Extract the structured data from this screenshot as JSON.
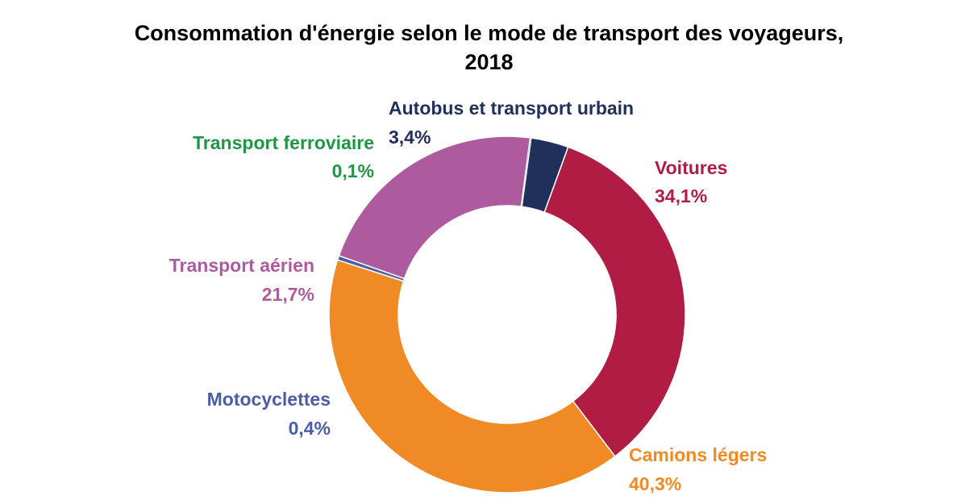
{
  "chart_data": {
    "type": "pie",
    "donut": true,
    "title": "Consommation d'énergie selon le mode de transport des voyageurs, 2018",
    "title_lines": [
      "Consommation d'énergie selon le mode de transport des voyageurs,",
      "2018"
    ],
    "slices": [
      {
        "label": "Voitures",
        "value": 34.1,
        "value_text": "34,1%",
        "color": "#b01c44"
      },
      {
        "label": "Camions légers",
        "value": 40.3,
        "value_text": "40,3%",
        "color": "#f08a24"
      },
      {
        "label": "Motocyclettes",
        "value": 0.4,
        "value_text": "0,4%",
        "color": "#4a5ea8"
      },
      {
        "label": "Transport aérien",
        "value": 21.7,
        "value_text": "21,7%",
        "color": "#ad5b9e"
      },
      {
        "label": "Transport ferroviaire",
        "value": 0.1,
        "value_text": "0,1%",
        "color": "#1e9645"
      },
      {
        "label": "Autobus et transport urbain",
        "value": 3.4,
        "value_text": "3,4%",
        "color": "#212f5b"
      }
    ],
    "legend": "none"
  }
}
